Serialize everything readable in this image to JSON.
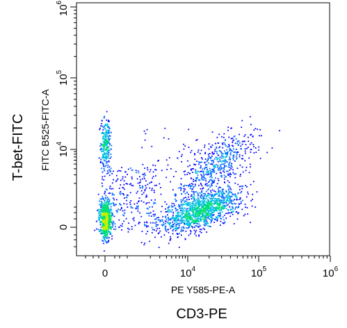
{
  "chart_data": {
    "type": "scatter",
    "x_axis_label": "PE Y585-PE-A",
    "y_axis_label": "FITC B525-FITC-A",
    "x_title": "CD3-PE",
    "y_title": "T-bet-FITC",
    "x_ticks": [
      {
        "value": 0,
        "label": "0",
        "exp": ""
      },
      {
        "value": 10000,
        "label": "10",
        "exp": "4"
      },
      {
        "value": 100000,
        "label": "10",
        "exp": "5"
      },
      {
        "value": 1000000,
        "label": "10",
        "exp": "6"
      }
    ],
    "y_ticks": [
      {
        "value": 0,
        "label": "0",
        "exp": ""
      },
      {
        "value": 10000,
        "label": "10",
        "exp": "4"
      },
      {
        "value": 100000,
        "label": "10",
        "exp": "5"
      },
      {
        "value": 1000000,
        "label": "10",
        "exp": "6"
      }
    ],
    "xlim": [
      -1500,
      1000000
    ],
    "ylim": [
      -1500,
      1000000
    ],
    "scale": "biexponential",
    "grid": false,
    "populations": [
      {
        "name": "",
        "center_x": 0,
        "center_y": 300,
        "n": 700
      },
      {
        "name": "",
        "center_x": 0,
        "center_y": 12000,
        "n": 260
      },
      {
        "name": "",
        "center_x": 15000,
        "center_y": 600,
        "n": 1300
      },
      {
        "name": "",
        "center_x": 25000,
        "center_y": 5000,
        "n": 500
      }
    ],
    "density_colors": [
      "#0000ff",
      "#0066ff",
      "#00c0e0",
      "#00e070",
      "#c8f000",
      "#ffff00"
    ]
  }
}
